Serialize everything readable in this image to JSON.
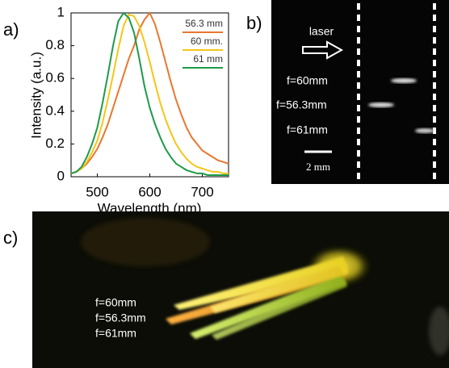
{
  "chart_data": {
    "type": "line",
    "panel_label": "a)",
    "x_label": "Wavelength (nm)",
    "y_label": "Intensity (a.u.)",
    "x": [
      450,
      460,
      470,
      480,
      490,
      500,
      510,
      520,
      530,
      540,
      550,
      560,
      570,
      580,
      590,
      600,
      610,
      620,
      630,
      640,
      650,
      660,
      670,
      680,
      690,
      700,
      710,
      720,
      730,
      740,
      750
    ],
    "series": [
      {
        "name": "56.3 mm",
        "color": "#e8772e",
        "values": [
          0.02,
          0.03,
          0.05,
          0.08,
          0.12,
          0.17,
          0.24,
          0.32,
          0.42,
          0.52,
          0.62,
          0.72,
          0.8,
          0.9,
          0.96,
          1,
          0.93,
          0.82,
          0.7,
          0.58,
          0.47,
          0.38,
          0.3,
          0.24,
          0.2,
          0.16,
          0.14,
          0.12,
          0.1,
          0.09,
          0.08
        ]
      },
      {
        "name": "60 mm.",
        "color": "#f5c518",
        "values": [
          0.02,
          0.03,
          0.05,
          0.09,
          0.15,
          0.22,
          0.33,
          0.47,
          0.62,
          0.78,
          0.92,
          0.99,
          0.98,
          0.92,
          0.82,
          0.7,
          0.57,
          0.45,
          0.35,
          0.27,
          0.2,
          0.15,
          0.11,
          0.08,
          0.06,
          0.05,
          0.04,
          0.03,
          0.03,
          0.02,
          0.02
        ]
      },
      {
        "name": "61 mm",
        "color": "#1e9a4a",
        "values": [
          0.02,
          0.03,
          0.06,
          0.12,
          0.2,
          0.3,
          0.45,
          0.62,
          0.8,
          0.95,
          1,
          0.97,
          0.88,
          0.72,
          0.55,
          0.42,
          0.32,
          0.24,
          0.17,
          0.12,
          0.08,
          0.06,
          0.04,
          0.03,
          0.02,
          0.02,
          0.01,
          0.01,
          0.01,
          0.01,
          0.01
        ]
      }
    ],
    "xlim": [
      450,
      750
    ],
    "xticks": [
      500,
      600,
      700
    ],
    "ylim": [
      0,
      1
    ],
    "yticks": [
      0,
      0.2,
      0.4,
      0.6,
      0.8,
      1
    ]
  },
  "panel_b": {
    "label": "b)",
    "laser": "laser",
    "f1": "f=60mm",
    "f2": "f=56.3mm",
    "f3": "f=61mm",
    "scale_bar": "2 mm"
  },
  "panel_c": {
    "label": "c)",
    "f1": "f=60mm",
    "f2": "f=56.3mm",
    "f3": "f=61mm"
  }
}
